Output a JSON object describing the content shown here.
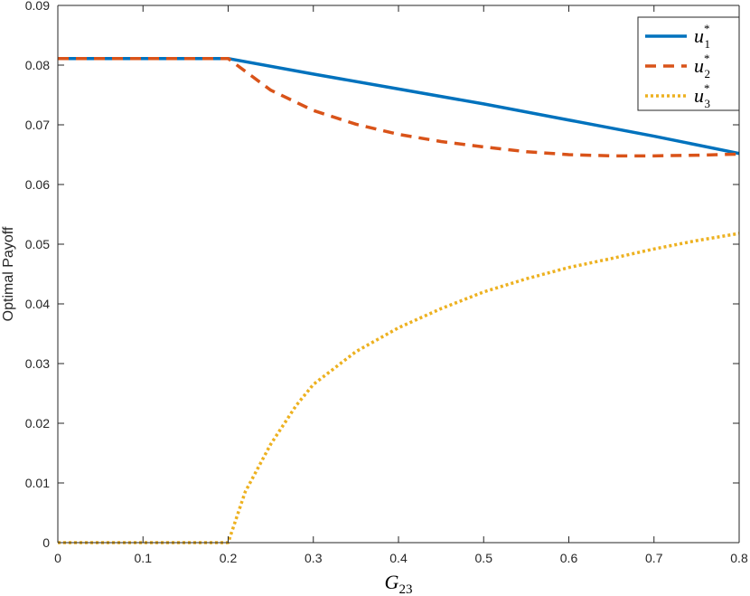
{
  "chart_data": {
    "type": "line",
    "xlabel": "G",
    "xlabel_sub": "23",
    "ylabel": "Optimal Payoff",
    "xlim": [
      0,
      0.8
    ],
    "ylim": [
      0,
      0.09
    ],
    "x_ticks": [
      "0",
      "0.1",
      "0.2",
      "0.3",
      "0.4",
      "0.5",
      "0.6",
      "0.7",
      "0.8"
    ],
    "y_ticks": [
      "0",
      "0.01",
      "0.02",
      "0.03",
      "0.04",
      "0.05",
      "0.06",
      "0.07",
      "0.08",
      "0.09"
    ],
    "grid": false,
    "legend_position": "top-right",
    "series": [
      {
        "name": "u",
        "sub": "1",
        "sup": "*",
        "color": "#0072BD",
        "style": "solid",
        "x": [
          0,
          0.2,
          0.3,
          0.4,
          0.5,
          0.6,
          0.7,
          0.8
        ],
        "y": [
          0.0811,
          0.0811,
          0.0785,
          0.076,
          0.0735,
          0.0708,
          0.0681,
          0.0652
        ]
      },
      {
        "name": "u",
        "sub": "2",
        "sup": "*",
        "color": "#D95319",
        "style": "dashed",
        "x": [
          0,
          0.2,
          0.25,
          0.3,
          0.35,
          0.4,
          0.45,
          0.5,
          0.55,
          0.6,
          0.65,
          0.7,
          0.75,
          0.8
        ],
        "y": [
          0.0811,
          0.0811,
          0.0758,
          0.0724,
          0.0701,
          0.0684,
          0.0672,
          0.0663,
          0.0655,
          0.065,
          0.0648,
          0.0648,
          0.0649,
          0.0651
        ]
      },
      {
        "name": "u",
        "sub": "3",
        "sup": "*",
        "color": "#EDB120",
        "style": "dotted",
        "x": [
          0,
          0.2,
          0.22,
          0.25,
          0.28,
          0.3,
          0.35,
          0.4,
          0.45,
          0.5,
          0.55,
          0.6,
          0.65,
          0.7,
          0.75,
          0.8
        ],
        "y": [
          0,
          0,
          0.0085,
          0.0165,
          0.023,
          0.0265,
          0.032,
          0.036,
          0.0392,
          0.042,
          0.0442,
          0.0461,
          0.0476,
          0.0492,
          0.0506,
          0.0518
        ]
      }
    ]
  }
}
